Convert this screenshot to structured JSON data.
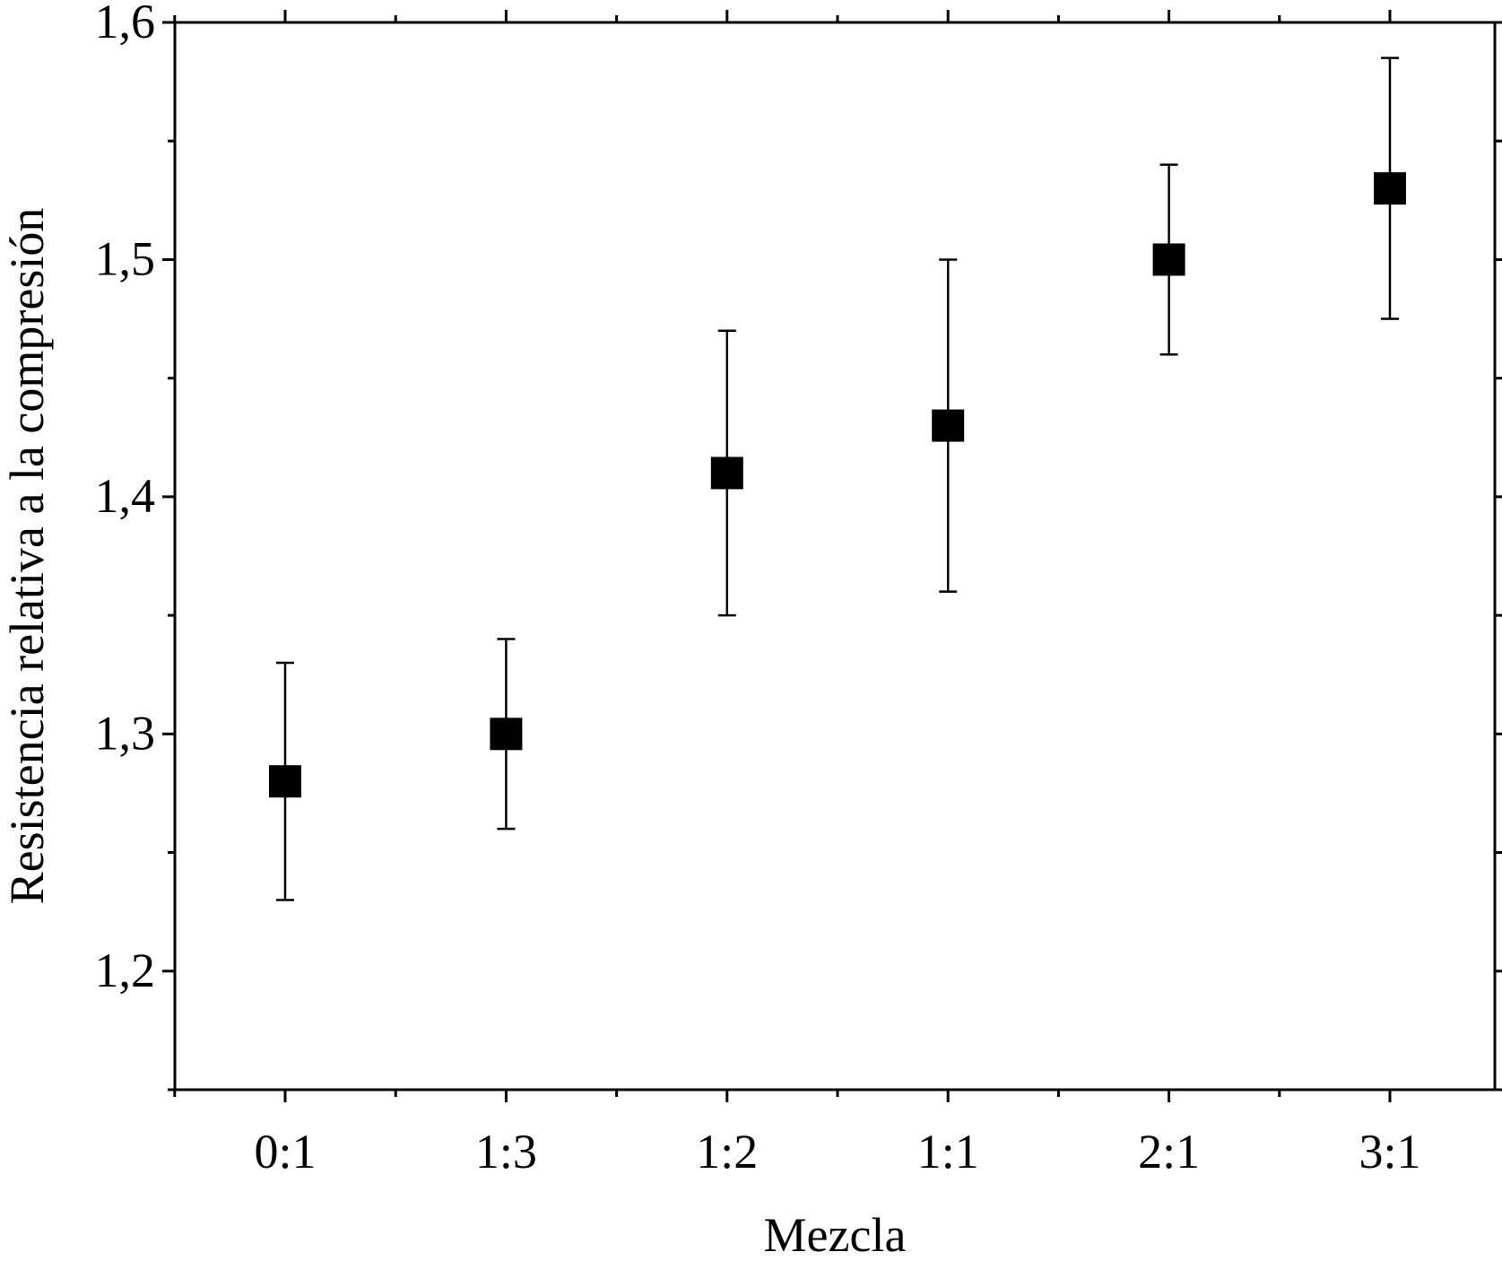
{
  "chart_data": {
    "type": "scatter",
    "title": "",
    "xlabel": "Mezcla",
    "ylabel": "Resistencia relativa a la compresión",
    "categories": [
      "0:1",
      "1:3",
      "1:2",
      "1:1",
      "2:1",
      "3:1"
    ],
    "values": [
      1.28,
      1.3,
      1.41,
      1.43,
      1.5,
      1.53
    ],
    "error_low": [
      1.23,
      1.26,
      1.35,
      1.36,
      1.46,
      1.475
    ],
    "error_high": [
      1.33,
      1.34,
      1.47,
      1.5,
      1.54,
      1.585
    ],
    "ylim": [
      1.15,
      1.6
    ],
    "yticks": [
      1.2,
      1.3,
      1.4,
      1.5,
      1.6
    ],
    "ytick_labels": [
      "1,2",
      "1,3",
      "1,4",
      "1,5",
      "1,6"
    ],
    "grid": false,
    "marker": "square",
    "marker_color": "#000000"
  }
}
